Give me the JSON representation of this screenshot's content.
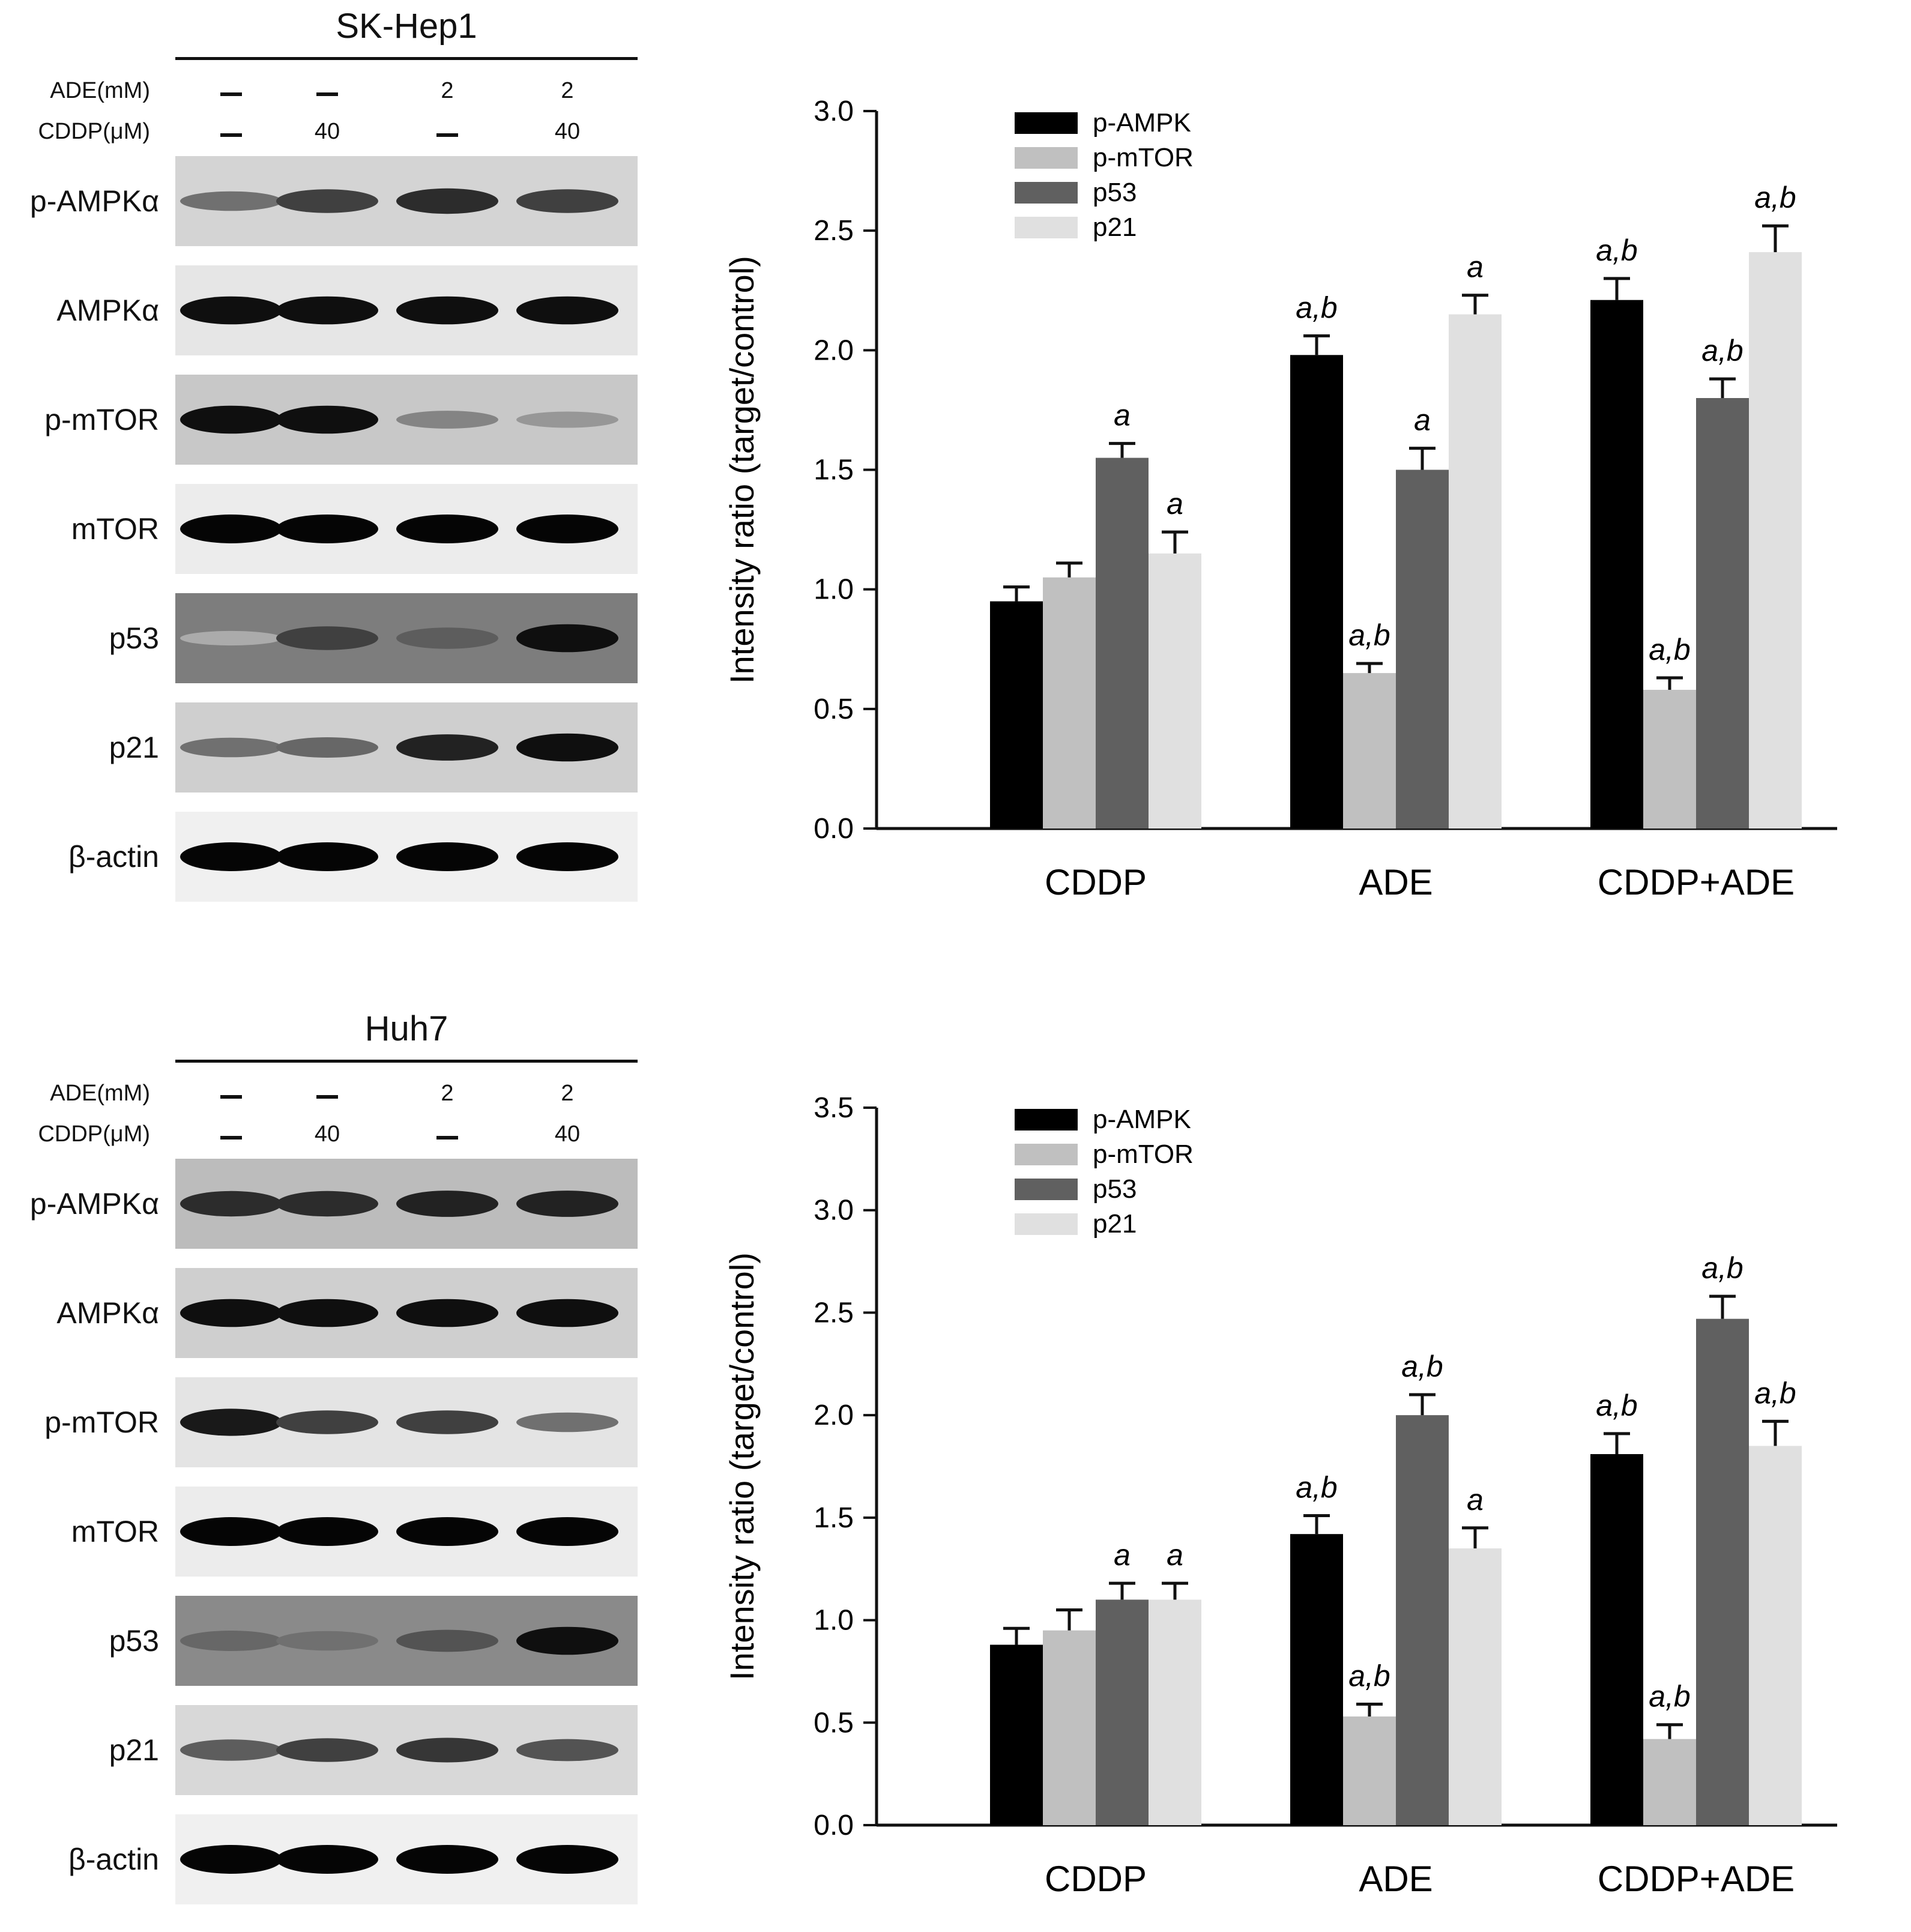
{
  "panels": [
    {
      "blot": {
        "title": "SK-Hep1",
        "conditions": [
          {
            "label": "ADE(mM)",
            "values": [
              "–",
              "–",
              "2",
              "2"
            ]
          },
          {
            "label": "CDDP(μM)",
            "values": [
              "–",
              "40",
              "–",
              "40"
            ]
          }
        ],
        "rows": [
          {
            "label": "p-AMPKα",
            "background": "#d4d4d4",
            "intensities": [
              0.45,
              0.7,
              0.8,
              0.7
            ]
          },
          {
            "label": "AMPKα",
            "background": "#e6e6e6",
            "intensities": [
              0.95,
              0.95,
              0.95,
              0.95
            ]
          },
          {
            "label": "p-mTOR",
            "background": "#c8c8c8",
            "intensities": [
              0.95,
              0.95,
              0.35,
              0.25
            ]
          },
          {
            "label": "mTOR",
            "background": "#ececec",
            "intensities": [
              1.0,
              1.0,
              1.0,
              1.0
            ]
          },
          {
            "label": "p53",
            "background": "#7d7d7d",
            "intensities": [
              0.15,
              0.7,
              0.55,
              0.95
            ]
          },
          {
            "label": "p21",
            "background": "#cfcfcf",
            "intensities": [
              0.45,
              0.5,
              0.85,
              0.95
            ]
          },
          {
            "label": "β-actin",
            "background": "#f0f0f0",
            "intensities": [
              1.0,
              1.0,
              1.0,
              1.0
            ]
          }
        ]
      },
      "chart_data": {
        "type": "bar",
        "categories": [
          "CDDP",
          "ADE",
          "CDDP+ADE"
        ],
        "ylabel": "Intensity ratio (target/control)",
        "xlabel": "",
        "ylim": [
          0,
          3.0
        ],
        "yticks": [
          "0.0",
          "0.5",
          "1.0",
          "1.5",
          "2.0",
          "2.5",
          "3.0"
        ],
        "legend_position": "top-left",
        "series": [
          {
            "name": "p-AMPK",
            "color": "#000000",
            "values": [
              0.95,
              1.98,
              2.21
            ],
            "errors": [
              0.06,
              0.08,
              0.09
            ],
            "annotations": [
              "",
              "a,b",
              "a,b"
            ]
          },
          {
            "name": "p-mTOR",
            "color": "#c0c0c0",
            "values": [
              1.05,
              0.65,
              0.58
            ],
            "errors": [
              0.06,
              0.04,
              0.05
            ],
            "annotations": [
              "",
              "a,b",
              "a,b"
            ]
          },
          {
            "name": "p53",
            "color": "#606060",
            "values": [
              1.55,
              1.5,
              1.8
            ],
            "errors": [
              0.06,
              0.09,
              0.08
            ],
            "annotations": [
              "a",
              "a",
              "a,b"
            ]
          },
          {
            "name": "p21",
            "color": "#e0e0e0",
            "values": [
              1.15,
              2.15,
              2.41
            ],
            "errors": [
              0.09,
              0.08,
              0.11
            ],
            "annotations": [
              "a",
              "a",
              "a,b"
            ]
          }
        ]
      }
    },
    {
      "blot": {
        "title": "Huh7",
        "conditions": [
          {
            "label": "ADE(mM)",
            "values": [
              "–",
              "–",
              "2",
              "2"
            ]
          },
          {
            "label": "CDDP(μM)",
            "values": [
              "–",
              "40",
              "–",
              "40"
            ]
          }
        ],
        "rows": [
          {
            "label": "p-AMPKα",
            "background": "#bcbcbc",
            "intensities": [
              0.8,
              0.8,
              0.85,
              0.85
            ]
          },
          {
            "label": "AMPKα",
            "background": "#cfcfcf",
            "intensities": [
              0.95,
              0.95,
              0.95,
              0.95
            ]
          },
          {
            "label": "p-mTOR",
            "background": "#e4e4e4",
            "intensities": [
              0.9,
              0.7,
              0.7,
              0.45
            ]
          },
          {
            "label": "mTOR",
            "background": "#ececec",
            "intensities": [
              1.0,
              1.0,
              1.0,
              1.0
            ]
          },
          {
            "label": "p53",
            "background": "#8a8a8a",
            "intensities": [
              0.5,
              0.45,
              0.6,
              0.95
            ]
          },
          {
            "label": "p21",
            "background": "#d8d8d8",
            "intensities": [
              0.55,
              0.7,
              0.75,
              0.6
            ]
          },
          {
            "label": "β-actin",
            "background": "#f0f0f0",
            "intensities": [
              1.0,
              1.0,
              1.0,
              1.0
            ]
          }
        ]
      },
      "chart_data": {
        "type": "bar",
        "categories": [
          "CDDP",
          "ADE",
          "CDDP+ADE"
        ],
        "ylabel": "Intensity ratio (target/control)",
        "xlabel": "",
        "ylim": [
          0,
          3.5
        ],
        "yticks": [
          "0.0",
          "0.5",
          "1.0",
          "1.5",
          "2.0",
          "2.5",
          "3.0",
          "3.5"
        ],
        "legend_position": "top-left",
        "series": [
          {
            "name": "p-AMPK",
            "color": "#000000",
            "values": [
              0.88,
              1.42,
              1.81
            ],
            "errors": [
              0.08,
              0.09,
              0.1
            ],
            "annotations": [
              "",
              "a,b",
              "a,b"
            ]
          },
          {
            "name": "p-mTOR",
            "color": "#c0c0c0",
            "values": [
              0.95,
              0.53,
              0.42
            ],
            "errors": [
              0.1,
              0.06,
              0.07
            ],
            "annotations": [
              "",
              "a,b",
              "a,b"
            ]
          },
          {
            "name": "p53",
            "color": "#606060",
            "values": [
              1.1,
              2.0,
              2.47
            ],
            "errors": [
              0.08,
              0.1,
              0.11
            ],
            "annotations": [
              "a",
              "a,b",
              "a,b"
            ]
          },
          {
            "name": "p21",
            "color": "#e0e0e0",
            "values": [
              1.1,
              1.35,
              1.85
            ],
            "errors": [
              0.08,
              0.1,
              0.12
            ],
            "annotations": [
              "a",
              "a",
              "a,b"
            ]
          }
        ]
      }
    }
  ]
}
